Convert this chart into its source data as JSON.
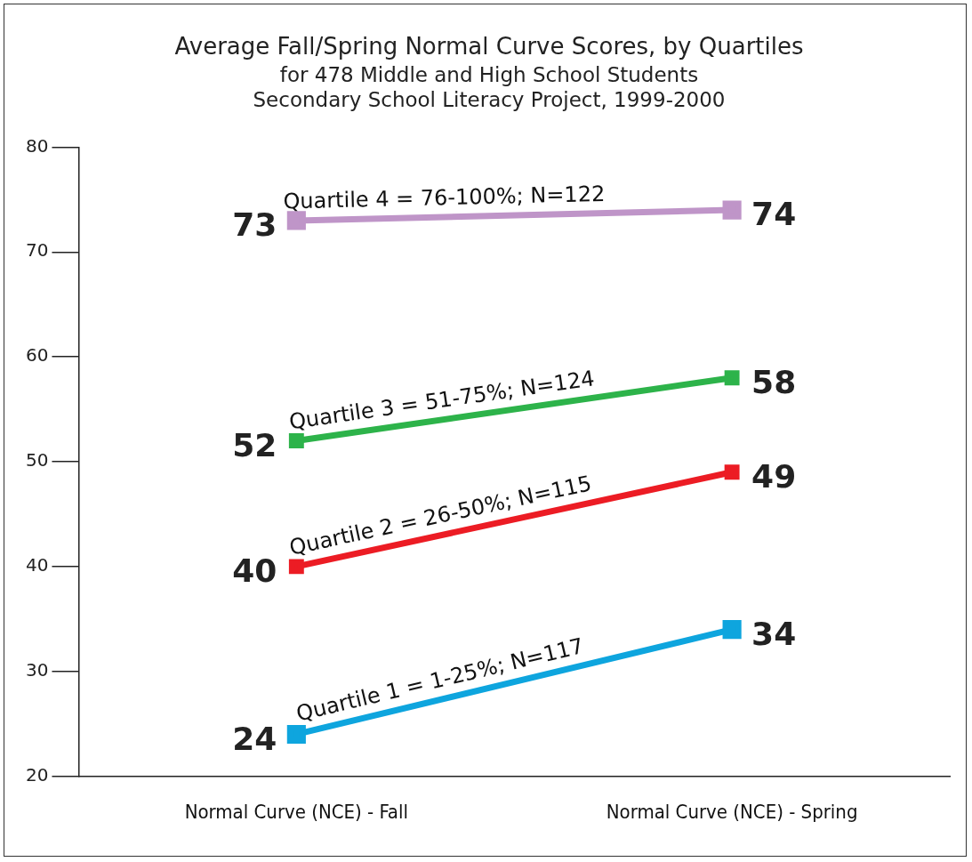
{
  "chart_data": {
    "type": "line",
    "title": "Average Fall/Spring Normal Curve Scores, by Quartiles",
    "subtitle": "for 478 Middle and High School Students\nSecondary School Literacy Project, 1999-2000",
    "categories": [
      "Normal Curve (NCE) - Fall",
      "Normal Curve (NCE) - Spring"
    ],
    "series": [
      {
        "name": "Quartile 4 = 76-100%; N=122",
        "color": "#bf95c8",
        "values": [
          73,
          74
        ]
      },
      {
        "name": "Quartile 3 = 51-75%; N=124",
        "color": "#2db34a",
        "values": [
          52,
          58
        ]
      },
      {
        "name": "Quartile 2 = 26-50%; N=115",
        "color": "#ec1c24",
        "values": [
          40,
          49
        ]
      },
      {
        "name": "Quartile 1 = 1-25%; N=117",
        "color": "#0ea5de",
        "values": [
          24,
          34
        ]
      }
    ],
    "ylim": [
      20,
      80
    ],
    "yticks": [
      20,
      30,
      40,
      50,
      60,
      70,
      80
    ],
    "grid": false,
    "legend": false,
    "marker": "square",
    "line_style": "solid",
    "data_labels": true
  }
}
